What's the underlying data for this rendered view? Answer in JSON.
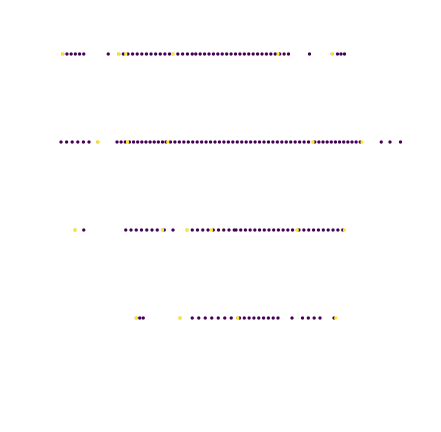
{
  "chart_data": {
    "type": "scatter",
    "title": "",
    "xlabel": "",
    "ylabel": "",
    "grid": false,
    "axes_visible": false,
    "color_scale": "viridis",
    "colors": {
      "low": "#440154",
      "high": "#fde725"
    },
    "xlim": [
      0,
      100
    ],
    "ylim": [
      0.5,
      4.5
    ],
    "rows": [
      {
        "y": 4,
        "segments": [
          {
            "x0": 0.5,
            "x1": 6.5,
            "n": 6
          },
          {
            "x0": 13.5,
            "x1": 14.0,
            "n": 1
          },
          {
            "x0": 16.5,
            "x1": 31.0,
            "n": 12
          },
          {
            "x0": 32.0,
            "x1": 37.5,
            "n": 5
          },
          {
            "x0": 38.5,
            "x1": 65.0,
            "n": 22
          },
          {
            "x0": 71.0,
            "x1": 71.5,
            "n": 1
          },
          {
            "x0": 77.5,
            "x1": 79.0,
            "n": 2
          },
          {
            "x0": 80.0,
            "x1": 81.0,
            "n": 2
          }
        ],
        "highlights": [
          0.5,
          16.5,
          18.5,
          32.0,
          62.0,
          77.5
        ]
      },
      {
        "y": 3,
        "segments": [
          {
            "x0": 0.0,
            "x1": 8.0,
            "n": 6
          },
          {
            "x0": 10.5,
            "x1": 11.0,
            "n": 1
          },
          {
            "x0": 16.0,
            "x1": 29.0,
            "n": 12
          },
          {
            "x0": 30.0,
            "x1": 72.0,
            "n": 34
          },
          {
            "x0": 72.5,
            "x1": 85.5,
            "n": 12
          },
          {
            "x0": 91.5,
            "x1": 92.0,
            "n": 1
          },
          {
            "x0": 94.0,
            "x1": 94.5,
            "n": 1
          },
          {
            "x0": 97.0,
            "x1": 97.5,
            "n": 1
          }
        ],
        "highlights": [
          10.5,
          19.0,
          30.5,
          72.0,
          86.0
        ]
      },
      {
        "y": 2,
        "segments": [
          {
            "x0": 4.0,
            "x1": 4.5,
            "n": 1
          },
          {
            "x0": 6.5,
            "x1": 7.0,
            "n": 1
          },
          {
            "x0": 18.5,
            "x1": 29.0,
            "n": 8
          },
          {
            "x0": 29.5,
            "x1": 32.0,
            "n": 2
          },
          {
            "x0": 36.0,
            "x1": 49.5,
            "n": 10
          },
          {
            "x0": 50.0,
            "x1": 67.5,
            "n": 14
          },
          {
            "x0": 68.0,
            "x1": 80.5,
            "n": 10
          }
        ],
        "highlights": [
          4.0,
          29.0,
          36.0,
          43.0,
          67.5,
          81.0
        ]
      },
      {
        "y": 1,
        "segments": [
          {
            "x0": 21.5,
            "x1": 23.5,
            "n": 3
          },
          {
            "x0": 34.0,
            "x1": 34.5,
            "n": 1
          },
          {
            "x0": 37.5,
            "x1": 50.5,
            "n": 8
          },
          {
            "x0": 51.0,
            "x1": 62.0,
            "n": 9
          },
          {
            "x0": 66.0,
            "x1": 66.5,
            "n": 1
          },
          {
            "x0": 69.0,
            "x1": 74.0,
            "n": 4
          },
          {
            "x0": 78.0,
            "x1": 78.5,
            "n": 1
          }
        ],
        "highlights": [
          21.5,
          34.0,
          50.5,
          78.5
        ]
      }
    ]
  }
}
